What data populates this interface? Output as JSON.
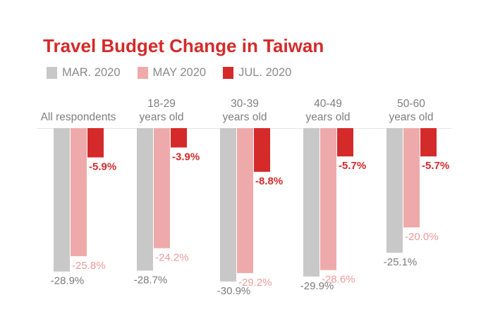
{
  "chart_data": {
    "type": "bar",
    "title": "Travel Budget Change in Taiwan",
    "categories": [
      [
        "All respondents"
      ],
      [
        "18-29",
        "years old"
      ],
      [
        "30-39",
        "years old"
      ],
      [
        "40-49",
        "years old"
      ],
      [
        "50-60",
        "years old"
      ]
    ],
    "series": [
      {
        "name": "MAR. 2020",
        "color": "#c8c8c8",
        "label_color": "#7a7a7a",
        "values": [
          -28.9,
          -28.7,
          -30.9,
          -29.9,
          -25.1
        ],
        "labels": [
          "-28.9%",
          "-28.7%",
          "-30.9%",
          "-29.9%",
          "-25.1%"
        ]
      },
      {
        "name": "MAY 2020",
        "color": "#eeaaaa",
        "label_color": "#ee9a9a",
        "values": [
          -25.8,
          -24.2,
          -29.2,
          -28.6,
          -20.0
        ],
        "labels": [
          "-25.8%",
          "-24.2%",
          "-29.2%",
          "-28.6%",
          "-20.0%"
        ]
      },
      {
        "name": "JUL. 2020",
        "color": "#d42a2a",
        "label_color": "#d42a2a",
        "values": [
          -5.9,
          -3.9,
          -8.8,
          -5.7,
          -5.7
        ],
        "labels": [
          "-5.9%",
          "-3.9%",
          "-8.8%",
          "-5.7%",
          "-5.7%"
        ]
      }
    ],
    "ylim": [
      -31,
      0
    ],
    "grid": false,
    "legend_position": "top-left"
  }
}
